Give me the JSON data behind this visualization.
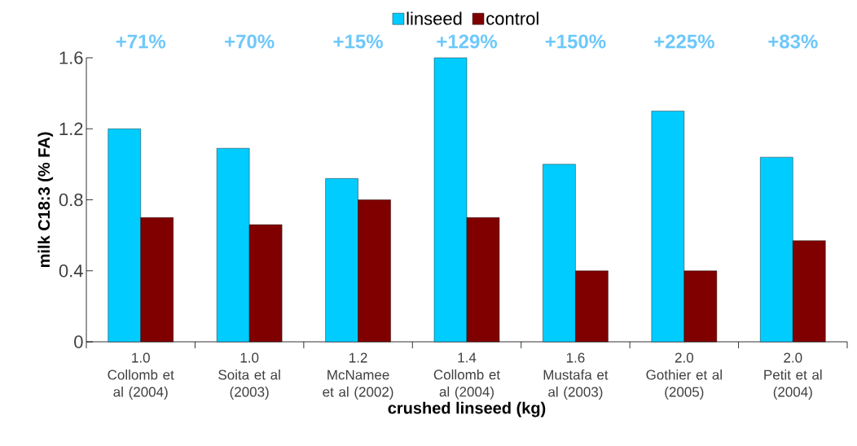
{
  "chart_data": {
    "type": "bar",
    "xlabel": "crushed linseed (kg)",
    "ylabel": "milk C18:3 (% FA)",
    "categories": [
      "1.0\nCollomb et\nal (2004)",
      "1.0\nSoita et al\n(2003)",
      "1.2\nMcNamee\net al (2002)",
      "1.4\nCollomb et\nal (2004)",
      "1.6\nMustafa et\nal (2003)",
      "2.0\nGothier et al\n(2005)",
      "2.0\nPetit et al\n(2004)"
    ],
    "series": [
      {
        "name": "linseed",
        "color": "#00ccff",
        "values": [
          1.2,
          1.09,
          0.92,
          1.6,
          1.0,
          1.3,
          1.04
        ]
      },
      {
        "name": "control",
        "color": "#800000",
        "values": [
          0.7,
          0.66,
          0.8,
          0.7,
          0.4,
          0.4,
          0.57
        ]
      }
    ],
    "ylim": [
      0,
      1.6
    ],
    "yticks": [
      0,
      0.4,
      0.8,
      1.2,
      1.6
    ],
    "legend": "top",
    "annotations": [
      "+71%",
      "+70%",
      "+15%",
      "+129%",
      "+150%",
      "+225%",
      "+83%"
    ]
  }
}
